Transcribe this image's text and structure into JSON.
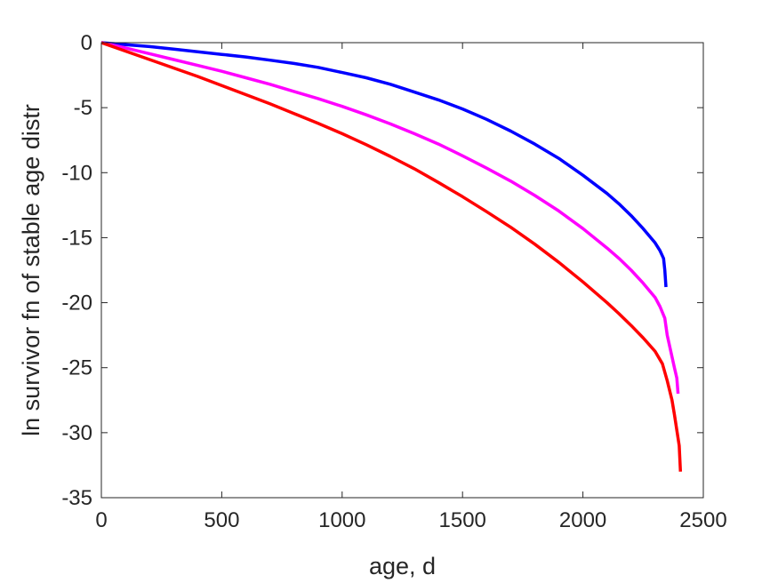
{
  "chart_data": {
    "type": "line",
    "title": "",
    "xlabel": "age, d",
    "ylabel": "ln survivor fn of stable age distr",
    "xlim": [
      0,
      2500
    ],
    "ylim": [
      -35,
      0
    ],
    "xticks": [
      0,
      500,
      1000,
      1500,
      2000,
      2500
    ],
    "yticks": [
      0,
      -5,
      -10,
      -15,
      -20,
      -25,
      -30,
      -35
    ],
    "xtick_labels": [
      "0",
      "500",
      "1000",
      "1500",
      "2000",
      "2500"
    ],
    "ytick_labels": [
      "0",
      "-5",
      "-10",
      "-15",
      "-20",
      "-25",
      "-30",
      "-35"
    ],
    "grid": false,
    "legend": "none",
    "series": [
      {
        "color": "#0000ff",
        "x": [
          0,
          100,
          200,
          300,
          400,
          500,
          600,
          700,
          800,
          900,
          1000,
          1100,
          1200,
          1300,
          1400,
          1500,
          1600,
          1700,
          1800,
          1900,
          2000,
          2100,
          2150,
          2200,
          2250,
          2300,
          2320,
          2335,
          2340,
          2345
        ],
        "y": [
          0,
          -0.15,
          -0.3,
          -0.5,
          -0.7,
          -0.9,
          -1.1,
          -1.35,
          -1.6,
          -1.9,
          -2.3,
          -2.7,
          -3.2,
          -3.8,
          -4.4,
          -5.1,
          -5.9,
          -6.8,
          -7.8,
          -8.9,
          -10.2,
          -11.6,
          -12.4,
          -13.3,
          -14.3,
          -15.4,
          -16.0,
          -16.6,
          -17.5,
          -18.8
        ]
      },
      {
        "color": "#ff00ff",
        "x": [
          0,
          100,
          200,
          300,
          400,
          500,
          600,
          700,
          800,
          900,
          1000,
          1100,
          1200,
          1300,
          1400,
          1500,
          1600,
          1700,
          1800,
          1900,
          2000,
          2100,
          2150,
          2200,
          2250,
          2300,
          2320,
          2340,
          2350,
          2380,
          2390,
          2395
        ],
        "y": [
          0,
          -0.4,
          -0.85,
          -1.3,
          -1.75,
          -2.2,
          -2.7,
          -3.2,
          -3.75,
          -4.3,
          -4.9,
          -5.55,
          -6.25,
          -7.0,
          -7.8,
          -8.7,
          -9.65,
          -10.65,
          -11.75,
          -12.95,
          -14.3,
          -15.8,
          -16.6,
          -17.5,
          -18.5,
          -19.6,
          -20.3,
          -21.2,
          -22.5,
          -25.0,
          -25.8,
          -27.0
        ]
      },
      {
        "color": "#ff0000",
        "x": [
          0,
          100,
          200,
          300,
          400,
          500,
          600,
          700,
          800,
          900,
          1000,
          1100,
          1200,
          1300,
          1400,
          1500,
          1600,
          1700,
          1800,
          1900,
          2000,
          2100,
          2150,
          2200,
          2250,
          2300,
          2330,
          2350,
          2370,
          2380,
          2400,
          2405
        ],
        "y": [
          0,
          -0.65,
          -1.3,
          -1.95,
          -2.6,
          -3.3,
          -4.0,
          -4.7,
          -5.45,
          -6.2,
          -7.0,
          -7.85,
          -8.75,
          -9.7,
          -10.75,
          -11.85,
          -13.0,
          -14.2,
          -15.5,
          -16.9,
          -18.4,
          -20.0,
          -20.85,
          -21.75,
          -22.7,
          -23.75,
          -24.7,
          -26.0,
          -27.5,
          -28.6,
          -31.0,
          -33.0
        ]
      }
    ]
  }
}
